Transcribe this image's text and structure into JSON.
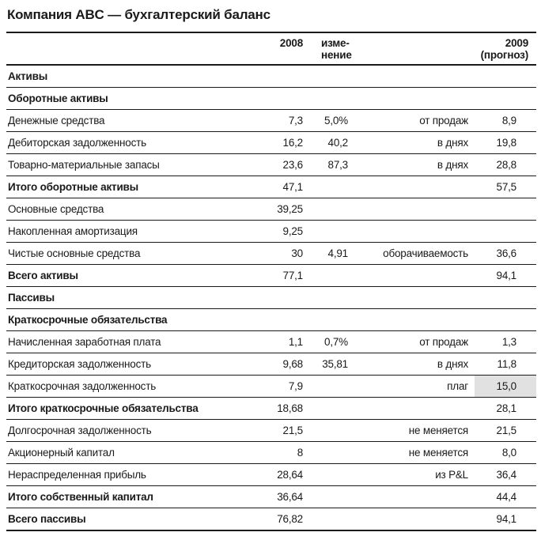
{
  "title": "Компания ABC — бухгалтерский баланс",
  "colors": {
    "highlight": "#e1e1e1",
    "text": "#1a1a1a",
    "rule": "#1a1a1a"
  },
  "table": {
    "header": {
      "label": "",
      "y2008": "2008",
      "change_line1": "изме-",
      "change_line2": "нение",
      "y2009_line1": "2009",
      "y2009_line2": "(прогноз)"
    },
    "rows": [
      {
        "label": "Активы",
        "v2008": "",
        "change": "",
        "note": "",
        "v2009": ""
      },
      {
        "label": "Оборотные активы",
        "v2008": "",
        "change": "",
        "note": "",
        "v2009": ""
      },
      {
        "label": "Денежные средства",
        "v2008": "7,3",
        "change": "5,0%",
        "note": "от продаж",
        "v2009": "8,9"
      },
      {
        "label": "Дебиторская задолженность",
        "v2008": "16,2",
        "change": "40,2",
        "note": "в днях",
        "v2009": "19,8"
      },
      {
        "label": "Товарно-материальные запасы",
        "v2008": "23,6",
        "change": "87,3",
        "note": "в днях",
        "v2009": "28,8"
      },
      {
        "label": "Итого оборотные активы",
        "v2008": "47,1",
        "change": "",
        "note": "",
        "v2009": "57,5"
      },
      {
        "label": "Основные средства",
        "v2008": "39,25",
        "change": "",
        "note": "",
        "v2009": ""
      },
      {
        "label": "Накопленная амортизация",
        "v2008": "9,25",
        "change": "",
        "note": "",
        "v2009": ""
      },
      {
        "label": "Чистые основные средства",
        "v2008": "30",
        "change": "4,91",
        "note": "оборачиваемость",
        "v2009": "36,6"
      },
      {
        "label": "Всего активы",
        "v2008": "77,1",
        "change": "",
        "note": "",
        "v2009": "94,1"
      },
      {
        "label": "Пассивы",
        "v2008": "",
        "change": "",
        "note": "",
        "v2009": ""
      },
      {
        "label": "Краткосрочные обязательства",
        "v2008": "",
        "change": "",
        "note": "",
        "v2009": ""
      },
      {
        "label": "Начисленная заработная плата",
        "v2008": "1,1",
        "change": "0,7%",
        "note": "от продаж",
        "v2009": "1,3"
      },
      {
        "label": "Кредиторская задолженность",
        "v2008": "9,68",
        "change": "35,81",
        "note": "в днях",
        "v2009": "11,8"
      },
      {
        "label": "Краткосрочная задолженность",
        "v2008": "7,9",
        "change": "",
        "note": "плаг",
        "v2009": "15,0"
      },
      {
        "label": "Итого краткосрочные обязательства",
        "v2008": "18,68",
        "change": "",
        "note": "",
        "v2009": "28,1"
      },
      {
        "label": "Долгосрочная задолженность",
        "v2008": "21,5",
        "change": "",
        "note": "не меняется",
        "v2009": "21,5"
      },
      {
        "label": "Акционерный капитал",
        "v2008": "8",
        "change": "",
        "note": "не меняется",
        "v2009": "8,0"
      },
      {
        "label": "Нераспределенная прибыль",
        "v2008": "28,64",
        "change": "",
        "note": "из P&L",
        "v2009": "36,4"
      },
      {
        "label": "Итого собственный капитал",
        "v2008": "36,64",
        "change": "",
        "note": "",
        "v2009": "44,4"
      },
      {
        "label": "Всего пассивы",
        "v2008": "76,82",
        "change": "",
        "note": "",
        "v2009": "94,1"
      }
    ]
  }
}
